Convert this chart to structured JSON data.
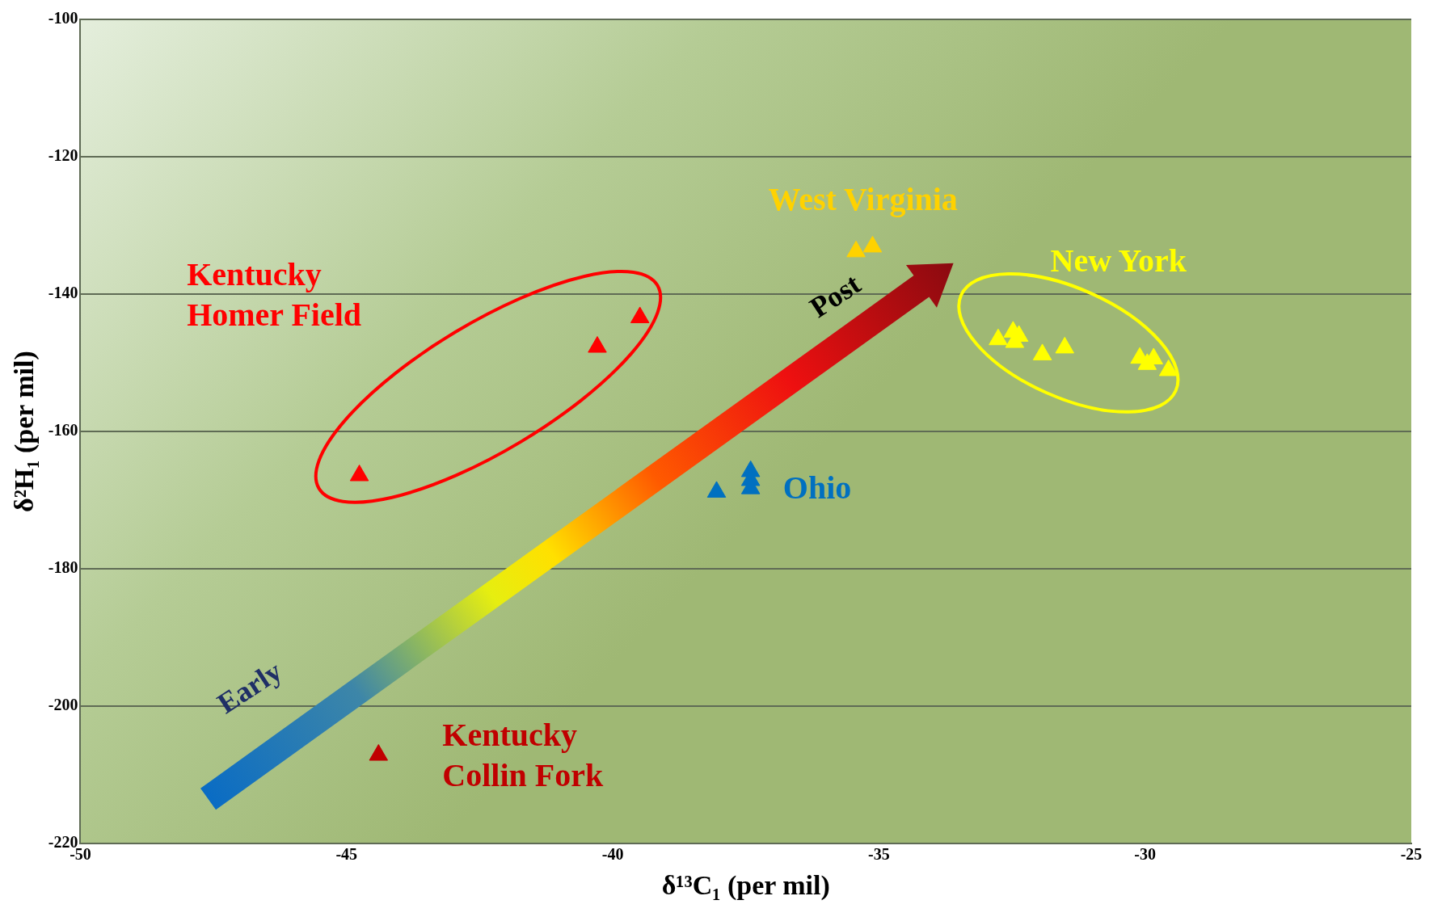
{
  "chart_data": {
    "type": "scatter",
    "xlabel": "δ¹³C₁ (per mil)",
    "ylabel": "δ²H₁ (per mil)",
    "xlim": [
      -50,
      -25
    ],
    "xticks": [
      -50,
      -45,
      -40,
      -35,
      -30,
      -25
    ],
    "ylim": [
      -220,
      -100
    ],
    "yticks": [
      -220,
      -200,
      -180,
      -160,
      -140,
      -120,
      -100
    ],
    "grid": "y",
    "legend": false,
    "marker": "triangle",
    "series": [
      {
        "name": "Kentucky Homer Field",
        "color": "#ff0000",
        "x": [
          -44.76,
          -40.29,
          -39.49
        ],
        "values": [
          -166.4,
          -147.7,
          -143.4
        ]
      },
      {
        "name": "Kentucky Collin Fork",
        "color": "#c00000",
        "x": [
          -44.4
        ],
        "values": [
          -207.1
        ]
      },
      {
        "name": "Ohio",
        "color": "#0070c0",
        "x": [
          -38.05,
          -37.41,
          -37.41,
          -37.41
        ],
        "values": [
          -168.8,
          -165.8,
          -167.1,
          -168.3
        ]
      },
      {
        "name": "West Virginia",
        "color": "#ffd200",
        "x": [
          -35.43,
          -35.12
        ],
        "values": [
          -133.8,
          -133.1
        ]
      },
      {
        "name": "New York",
        "color": "#ffff00",
        "x": [
          -32.76,
          -32.48,
          -32.37,
          -32.45,
          -31.93,
          -31.51,
          -30.1,
          -29.96,
          -29.84,
          -29.56
        ],
        "values": [
          -146.6,
          -145.5,
          -146.1,
          -147.0,
          -148.8,
          -147.8,
          -149.3,
          -150.2,
          -149.4,
          -151.1
        ]
      }
    ],
    "annotations": [
      "Early",
      "Post"
    ]
  }
}
